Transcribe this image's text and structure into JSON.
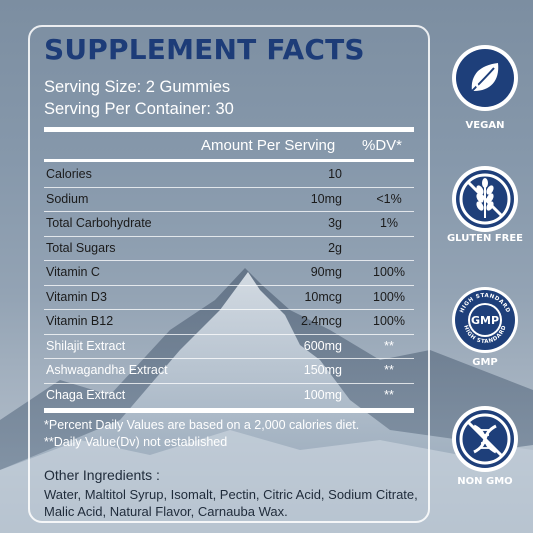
{
  "title": "SUPPLEMENT FACTS",
  "serving_size": "Serving Size: 2 Gummies",
  "serving_per_container": "Serving Per Container: 30",
  "columns": {
    "amount": "Amount Per Serving",
    "dv": "%DV*"
  },
  "rows": [
    {
      "name": "Calories",
      "amount": "10",
      "dv": ""
    },
    {
      "name": "Sodium",
      "amount": "10mg",
      "dv": "<1%"
    },
    {
      "name": "Total Carbohydrate",
      "amount": "3g",
      "dv": "1%"
    },
    {
      "name": "Total Sugars",
      "amount": "2g",
      "dv": ""
    },
    {
      "name": "Vitamin C",
      "amount": "90mg",
      "dv": "100%"
    },
    {
      "name": "Vitamin D3",
      "amount": "10mcg",
      "dv": "100%"
    },
    {
      "name": "Vitamin B12",
      "amount": "2.4mcg",
      "dv": "100%"
    },
    {
      "name": "Shilajit Extract",
      "amount": "600mg",
      "dv": "**"
    },
    {
      "name": "Ashwagandha Extract",
      "amount": "150mg",
      "dv": "**"
    },
    {
      "name": "Chaga Extract",
      "amount": "100mg",
      "dv": "**"
    }
  ],
  "footnotes": [
    "*Percent Daily Values are based on a 2,000 calories diet.",
    "**Daily Value(Dv) not established"
  ],
  "other_ingredients": {
    "title": "Other Ingredients :",
    "lines": [
      "Water, Maltitol Syrup, Isomalt, Pectin, Citric Acid, Sodium Citrate,",
      "Malic Acid, Natural Flavor, Carnauba Wax."
    ]
  },
  "badges": [
    {
      "label": "VEGAN",
      "icon": "leaf-icon"
    },
    {
      "label": "GLUTEN FREE",
      "icon": "wheat-crossed-icon"
    },
    {
      "label": "GMP",
      "icon": "gmp-seal-icon",
      "seal_text": "GMP",
      "ring_text": "HIGH STANDARD"
    },
    {
      "label": "NON GMO",
      "icon": "dna-crossed-icon"
    }
  ],
  "colors": {
    "title_blue": "#1d3c78",
    "badge_blue": "#1e3f7a"
  }
}
